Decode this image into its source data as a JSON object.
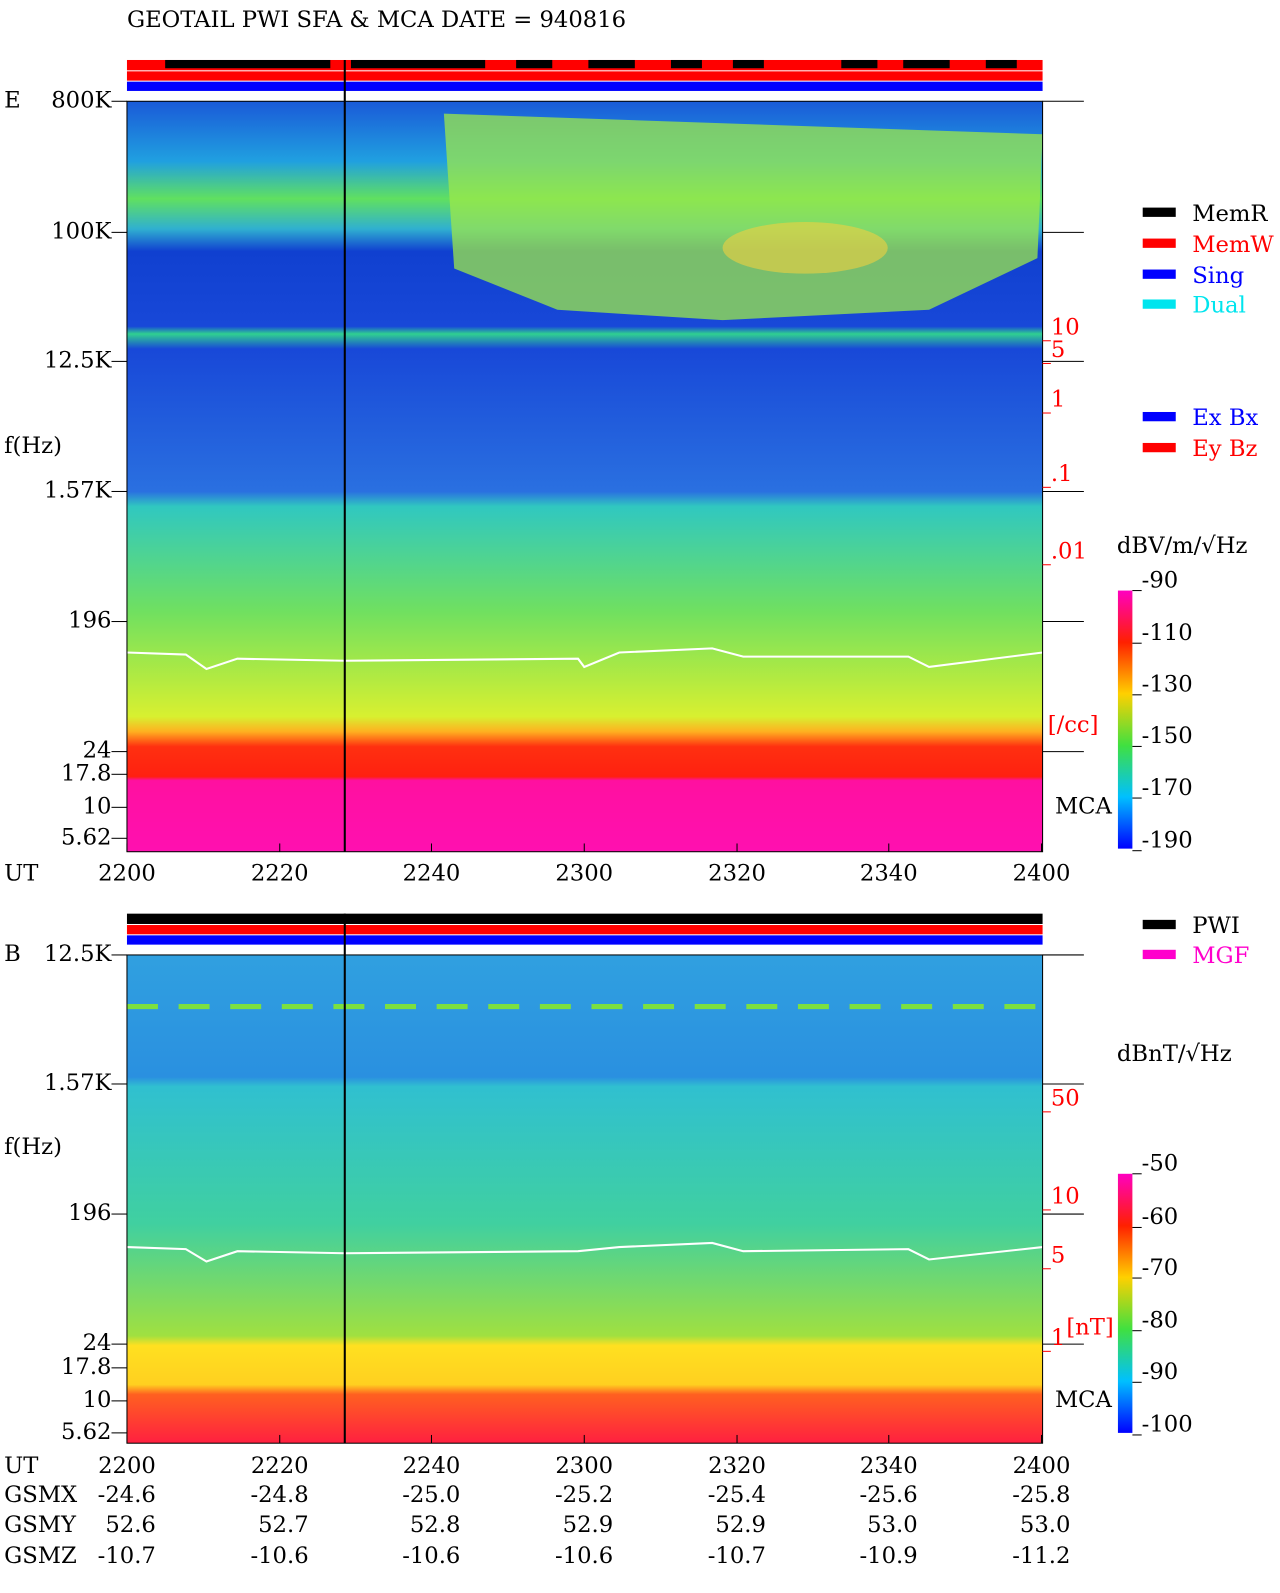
{
  "title": "GEOTAIL  PWI SFA & MCA   DATE = 940816",
  "panels": [
    {
      "label": "E",
      "y_axis_label": "f(Hz)",
      "freq_ticks": [
        "800K",
        "100K",
        "12.5K",
        "1.57K",
        "196",
        "24",
        "17.8",
        "10",
        "5.62"
      ],
      "density_ticks": [
        "10",
        "5",
        "1",
        ".1",
        ".01"
      ],
      "density_unit": "[/cc]",
      "mca_label": "MCA",
      "legend": [
        {
          "label": "MemR",
          "color": "#000000"
        },
        {
          "label": "MemW",
          "color": "#ff0000"
        },
        {
          "label": "Sing",
          "color": "#0000ff"
        },
        {
          "label": "Dual",
          "color": "#00e5ee"
        }
      ],
      "legend2": [
        {
          "label": "Ex Bx",
          "color": "#0000ff"
        },
        {
          "label": "Ey Bz",
          "color": "#ff0000"
        }
      ],
      "colorbar_unit": "dBV/m/√Hz",
      "colorbar_ticks": [
        "-90",
        "-110",
        "-130",
        "-150",
        "-170",
        "-190"
      ],
      "time_label": "UT",
      "time_ticks": [
        "2200",
        "2220",
        "2240",
        "2300",
        "2320",
        "2340",
        "2400"
      ]
    },
    {
      "label": "B",
      "y_axis_label": "f(Hz)",
      "freq_ticks": [
        "12.5K",
        "1.57K",
        "196",
        "24",
        "17.8",
        "10",
        "5.62"
      ],
      "density_ticks": [
        "50",
        "10",
        "5",
        "1"
      ],
      "density_unit": "[nT]",
      "mca_label": "MCA",
      "legend": [
        {
          "label": "PWI",
          "color": "#000000"
        },
        {
          "label": "MGF",
          "color": "#ff00cc"
        }
      ],
      "colorbar_unit": "dBnT/√Hz",
      "colorbar_ticks": [
        "-50",
        "-60",
        "-70",
        "-80",
        "-90",
        "-100"
      ],
      "time_label": "UT",
      "time_ticks": [
        "2200",
        "2220",
        "2240",
        "2300",
        "2320",
        "2340",
        "2400"
      ]
    }
  ],
  "orbit": {
    "rows": [
      {
        "label": "GSMX",
        "values": [
          "-24.6",
          "-24.8",
          "-25.0",
          "-25.2",
          "-25.4",
          "-25.6",
          "-25.8"
        ]
      },
      {
        "label": "GSMY",
        "values": [
          "52.6",
          "52.7",
          "52.8",
          "52.9",
          "52.9",
          "53.0",
          "53.0"
        ]
      },
      {
        "label": "GSMZ",
        "values": [
          "-10.7",
          "-10.6",
          "-10.6",
          "-10.6",
          "-10.7",
          "-10.9",
          "-11.2"
        ]
      }
    ]
  }
}
